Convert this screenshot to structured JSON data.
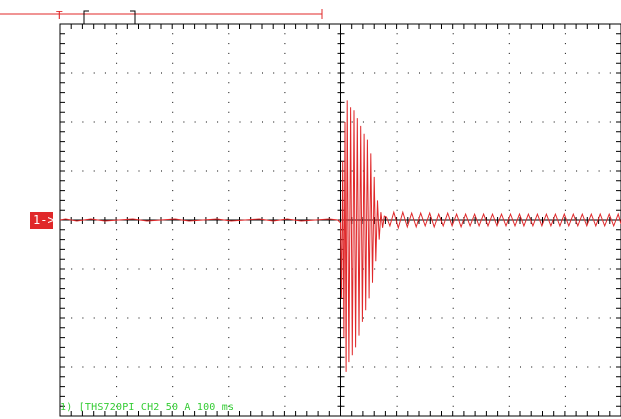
{
  "colors": {
    "background": "#ffffff",
    "frame": "#000000",
    "grid": "#000000",
    "trace": "#e0282a",
    "marker": "#e0282a",
    "status_text": "#33cc33"
  },
  "trigger": {
    "label": "T"
  },
  "channel_marker": {
    "label": "1->"
  },
  "status_line": {
    "text": "1) [THS720PI CH2  50 A   100 ms"
  },
  "chart_data": {
    "type": "line",
    "title": "",
    "xlabel": "",
    "ylabel": "",
    "x_units": "ms",
    "y_units": "A",
    "x_per_div": 100,
    "y_per_div": 50,
    "xlim": [
      -500,
      500
    ],
    "ylim": [
      -200,
      200
    ],
    "grid": true,
    "series": [
      {
        "channel": "CH2",
        "points": [
          [
            -500,
            0
          ],
          [
            -490,
            1
          ],
          [
            -470,
            -1
          ],
          [
            -445,
            1
          ],
          [
            -420,
            -1
          ],
          [
            -395,
            0
          ],
          [
            -370,
            1
          ],
          [
            -345,
            -1
          ],
          [
            -320,
            0
          ],
          [
            -295,
            1
          ],
          [
            -270,
            -1
          ],
          [
            -245,
            0
          ],
          [
            -220,
            1
          ],
          [
            -195,
            -1
          ],
          [
            -170,
            0
          ],
          [
            -145,
            1
          ],
          [
            -120,
            -1
          ],
          [
            -95,
            1
          ],
          [
            -70,
            -1
          ],
          [
            -45,
            0
          ],
          [
            -20,
            1
          ],
          [
            -5,
            0
          ],
          [
            0,
            -3
          ],
          [
            2,
            -80
          ],
          [
            4,
            60
          ],
          [
            6,
            -120
          ],
          [
            8,
            100
          ],
          [
            10,
            -155
          ],
          [
            12,
            122
          ],
          [
            15,
            -145
          ],
          [
            18,
            115
          ],
          [
            21,
            -138
          ],
          [
            24,
            112
          ],
          [
            27,
            -130
          ],
          [
            30,
            104
          ],
          [
            33,
            -118
          ],
          [
            36,
            96
          ],
          [
            39,
            -104
          ],
          [
            42,
            88
          ],
          [
            45,
            -92
          ],
          [
            48,
            82
          ],
          [
            51,
            -80
          ],
          [
            54,
            68
          ],
          [
            57,
            -64
          ],
          [
            60,
            44
          ],
          [
            63,
            -42
          ],
          [
            66,
            20
          ],
          [
            69,
            -20
          ],
          [
            72,
            8
          ],
          [
            75,
            -8
          ],
          [
            78,
            4
          ],
          [
            82,
            3
          ],
          [
            88,
            -6
          ],
          [
            95,
            8
          ],
          [
            103,
            -8
          ],
          [
            111,
            8
          ],
          [
            119,
            -7
          ],
          [
            127,
            7
          ],
          [
            135,
            -7
          ],
          [
            143,
            7
          ],
          [
            151,
            -6
          ],
          [
            159,
            7
          ],
          [
            167,
            -7
          ],
          [
            175,
            6
          ],
          [
            183,
            -6
          ],
          [
            191,
            7
          ],
          [
            199,
            -6
          ],
          [
            207,
            6
          ],
          [
            215,
            -7
          ],
          [
            223,
            6
          ],
          [
            231,
            -6
          ],
          [
            239,
            6
          ],
          [
            247,
            -6
          ],
          [
            255,
            6
          ],
          [
            263,
            -6
          ],
          [
            271,
            6
          ],
          [
            279,
            -6
          ],
          [
            287,
            6
          ],
          [
            295,
            -6
          ],
          [
            303,
            6
          ],
          [
            311,
            -6
          ],
          [
            319,
            6
          ],
          [
            327,
            -6
          ],
          [
            335,
            6
          ],
          [
            343,
            -6
          ],
          [
            351,
            6
          ],
          [
            359,
            -6
          ],
          [
            367,
            6
          ],
          [
            375,
            -6
          ],
          [
            383,
            6
          ],
          [
            391,
            -6
          ],
          [
            399,
            6
          ],
          [
            407,
            -6
          ],
          [
            415,
            6
          ],
          [
            423,
            -6
          ],
          [
            431,
            6
          ],
          [
            439,
            -6
          ],
          [
            447,
            6
          ],
          [
            455,
            -6
          ],
          [
            463,
            6
          ],
          [
            471,
            -6
          ],
          [
            479,
            6
          ],
          [
            487,
            -6
          ],
          [
            495,
            6
          ],
          [
            500,
            -4
          ]
        ]
      }
    ]
  }
}
